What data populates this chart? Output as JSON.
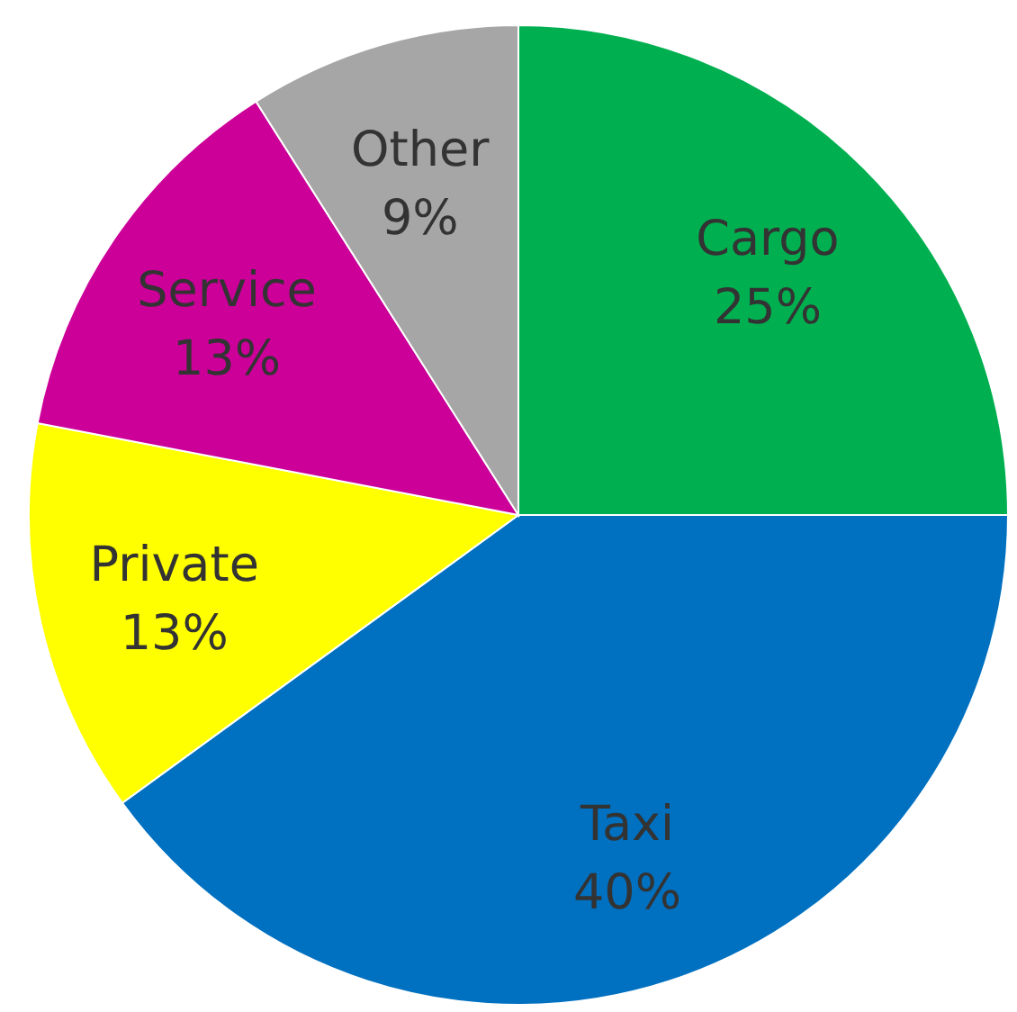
{
  "chart_data": {
    "type": "pie",
    "categories": [
      "Cargo",
      "Taxi",
      "Private",
      "Service",
      "Other"
    ],
    "values": [
      25,
      40,
      13,
      13,
      9
    ],
    "value_labels": [
      "25%",
      "40%",
      "13%",
      "13%",
      "9%"
    ],
    "colors": [
      "#00b050",
      "#0070c0",
      "#ffff00",
      "#cc0099",
      "#a6a6a6"
    ],
    "legend": false
  }
}
